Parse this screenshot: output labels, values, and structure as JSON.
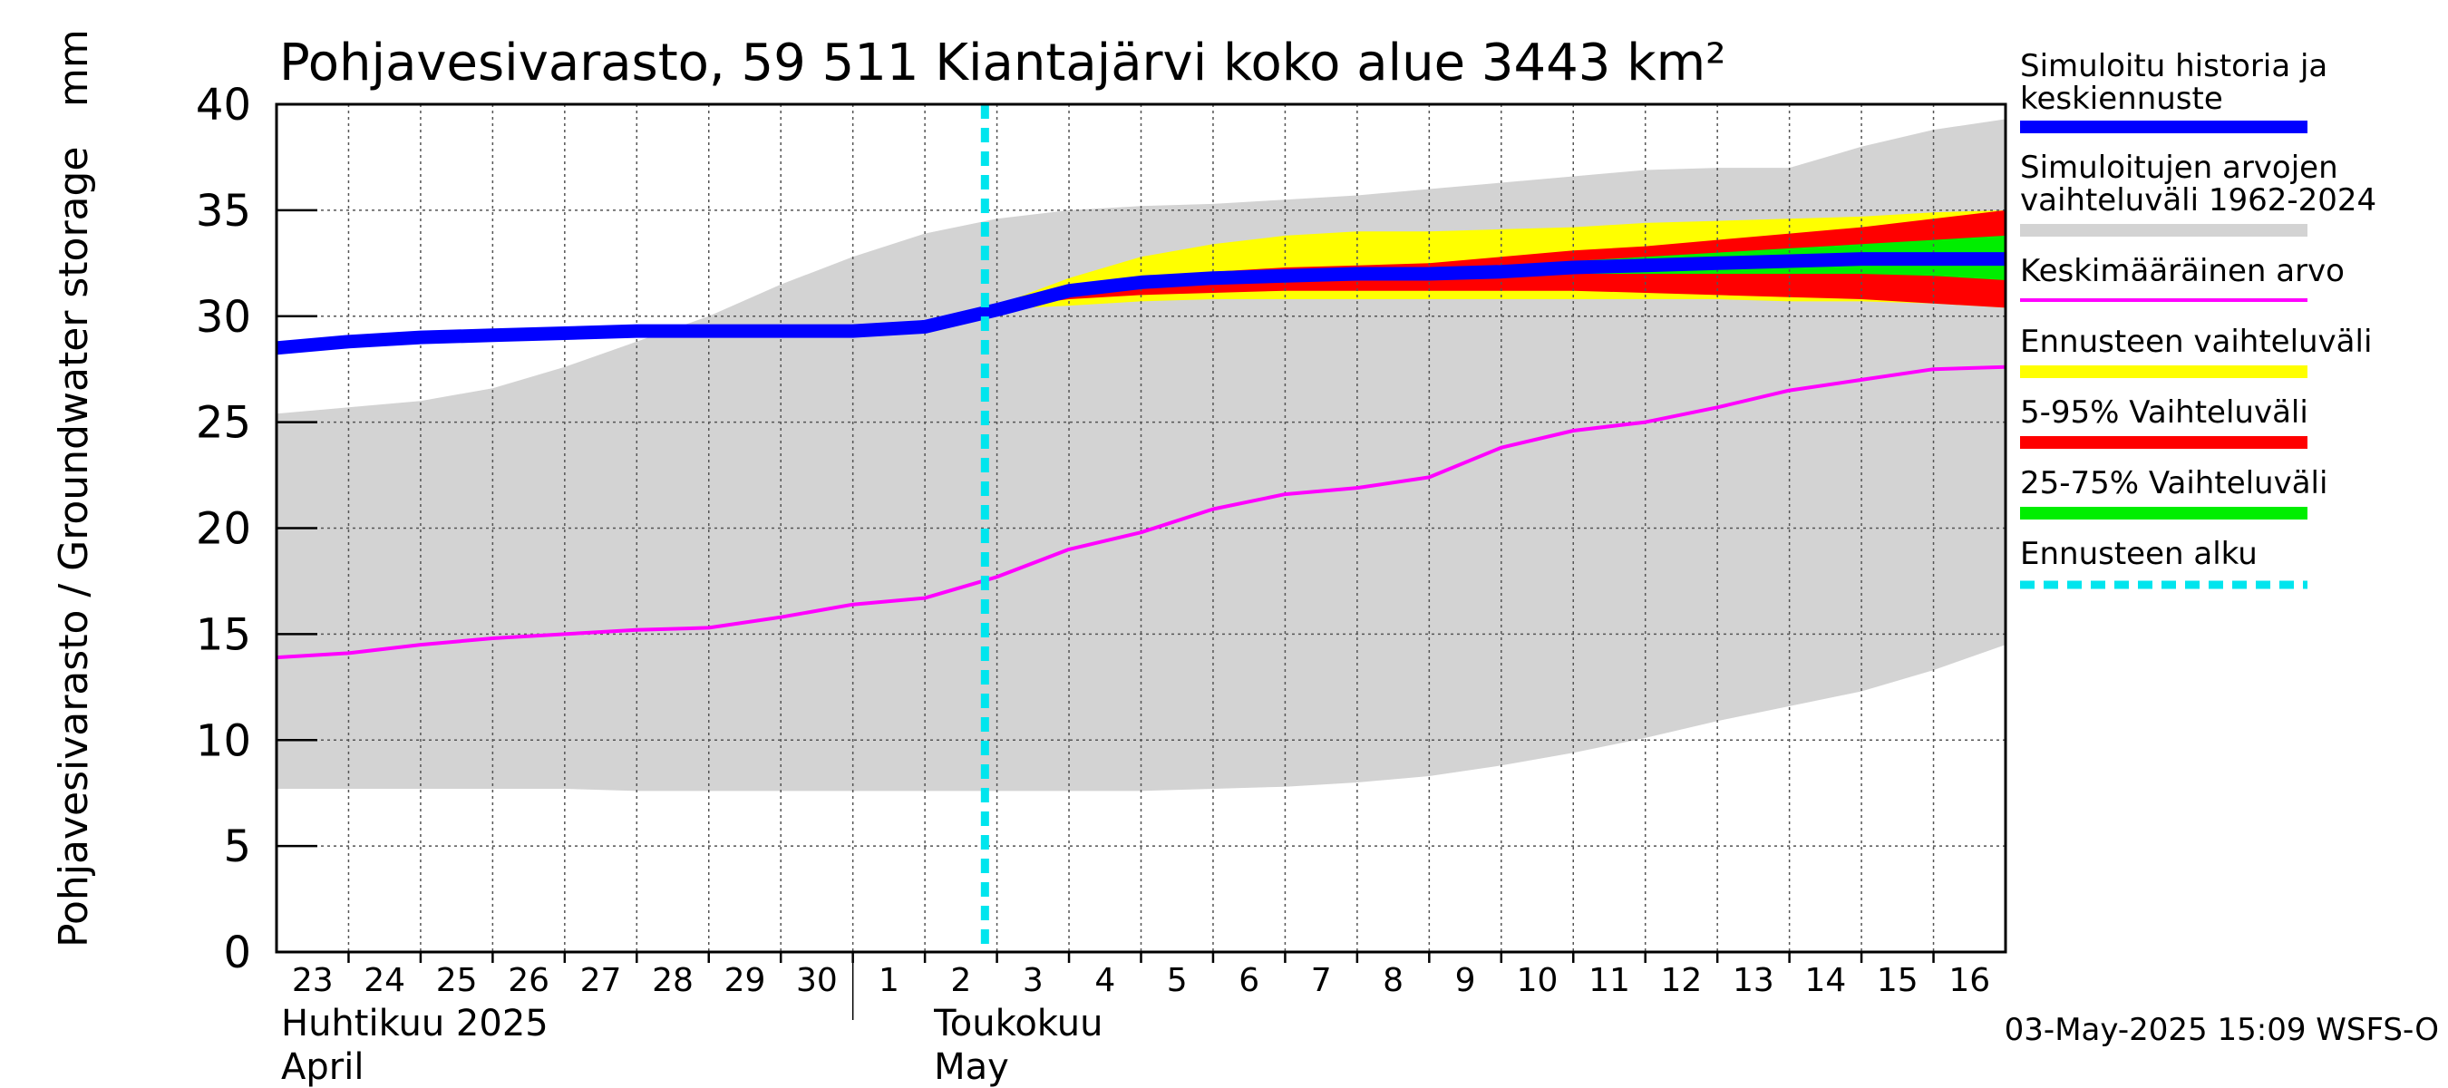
{
  "chart_data": {
    "type": "line",
    "title": "Pohjavesivarasto, 59 511 Kiantajärvi koko alue 3443 km²",
    "ylabel": "Pohjavesivarasto / Groundwater storage",
    "yunit": "mm",
    "ylim": [
      0,
      40
    ],
    "yticks": [
      "0",
      "5",
      "10",
      "15",
      "20",
      "25",
      "30",
      "35",
      "40"
    ],
    "x_day_labels": [
      "23",
      "24",
      "25",
      "26",
      "27",
      "28",
      "29",
      "30",
      "1",
      "2",
      "3",
      "4",
      "5",
      "6",
      "7",
      "8",
      "9",
      "10",
      "11",
      "12",
      "13",
      "14",
      "15",
      "16"
    ],
    "x_dates": [
      "2025-04-23",
      "2025-04-24",
      "2025-04-25",
      "2025-04-26",
      "2025-04-27",
      "2025-04-28",
      "2025-04-29",
      "2025-04-30",
      "2025-05-01",
      "2025-05-02",
      "2025-05-03",
      "2025-05-04",
      "2025-05-05",
      "2025-05-06",
      "2025-05-07",
      "2025-05-08",
      "2025-05-09",
      "2025-05-10",
      "2025-05-11",
      "2025-05-12",
      "2025-05-13",
      "2025-05-14",
      "2025-05-15",
      "2025-05-16",
      "2025-05-17"
    ],
    "x_range": [
      "2025-04-23",
      "2025-05-17"
    ],
    "month_labels": [
      {
        "line1": "Huhtikuu  2025",
        "line2": "April",
        "start": "2025-04-23"
      },
      {
        "line1": "Toukokuu",
        "line2": "May",
        "start": "2025-05-02"
      }
    ],
    "forecast_start": "2025-05-02T20:00",
    "grid": true,
    "series": [
      {
        "name": "Simuloitujen arvojen vaihteluväli 1962-2024",
        "kind": "band",
        "color": "#d3d3d3",
        "lower": [
          7.7,
          7.7,
          7.7,
          7.7,
          7.7,
          7.6,
          7.6,
          7.6,
          7.6,
          7.6,
          7.6,
          7.6,
          7.6,
          7.7,
          7.8,
          8.0,
          8.3,
          8.8,
          9.4,
          10.1,
          10.9,
          11.6,
          12.3,
          13.3,
          14.5
        ],
        "upper": [
          25.4,
          25.7,
          26.0,
          26.6,
          27.6,
          28.8,
          30.0,
          31.5,
          32.8,
          33.9,
          34.6,
          35.0,
          35.2,
          35.3,
          35.5,
          35.7,
          36.0,
          36.3,
          36.6,
          36.9,
          37.0,
          37.0,
          38.0,
          38.8,
          39.3
        ]
      },
      {
        "name": "Keskimääräinen arvo",
        "kind": "line",
        "color": "#ff00ff",
        "values": [
          13.9,
          14.1,
          14.5,
          14.8,
          15.0,
          15.2,
          15.3,
          15.8,
          16.4,
          16.7,
          17.7,
          19.0,
          19.8,
          20.9,
          21.6,
          21.9,
          22.4,
          23.8,
          24.6,
          25.0,
          25.7,
          26.5,
          27.0,
          27.5,
          27.6
        ]
      },
      {
        "name": "Ennusteen vaihteluväli",
        "kind": "band",
        "color": "#ffff00",
        "x": [
          "2025-05-02T20:00",
          "2025-05-04",
          "2025-05-05",
          "2025-05-06",
          "2025-05-07",
          "2025-05-08",
          "2025-05-09",
          "2025-05-10",
          "2025-05-11",
          "2025-05-12",
          "2025-05-13",
          "2025-05-14",
          "2025-05-15",
          "2025-05-16",
          "2025-05-17"
        ],
        "lower": [
          30.3,
          30.5,
          30.7,
          30.8,
          30.8,
          30.8,
          30.8,
          30.8,
          30.8,
          30.8,
          30.8,
          30.7,
          30.7,
          30.6,
          30.4
        ],
        "upper": [
          30.3,
          31.8,
          32.8,
          33.4,
          33.8,
          34.0,
          34.0,
          34.1,
          34.2,
          34.4,
          34.5,
          34.6,
          34.7,
          34.9,
          35.0
        ]
      },
      {
        "name": "5-95% Vaihteluväli",
        "kind": "band",
        "color": "#ff0000",
        "x": [
          "2025-05-02T20:00",
          "2025-05-04",
          "2025-05-05",
          "2025-05-06",
          "2025-05-07",
          "2025-05-08",
          "2025-05-09",
          "2025-05-10",
          "2025-05-11",
          "2025-05-12",
          "2025-05-13",
          "2025-05-14",
          "2025-05-15",
          "2025-05-16",
          "2025-05-17"
        ],
        "lower": [
          30.3,
          30.8,
          31.0,
          31.1,
          31.2,
          31.2,
          31.2,
          31.2,
          31.2,
          31.1,
          31.0,
          30.9,
          30.8,
          30.6,
          30.4
        ],
        "upper": [
          30.3,
          31.4,
          31.8,
          32.1,
          32.3,
          32.4,
          32.5,
          32.8,
          33.1,
          33.3,
          33.6,
          33.9,
          34.2,
          34.6,
          35.0
        ]
      },
      {
        "name": "25-75% Vaihteluväli",
        "kind": "band",
        "color": "#00ee00",
        "x": [
          "2025-05-02T20:00",
          "2025-05-04",
          "2025-05-05",
          "2025-05-06",
          "2025-05-07",
          "2025-05-08",
          "2025-05-09",
          "2025-05-10",
          "2025-05-11",
          "2025-05-12",
          "2025-05-13",
          "2025-05-14",
          "2025-05-15",
          "2025-05-16",
          "2025-05-17"
        ],
        "lower": [
          30.3,
          31.1,
          31.4,
          31.6,
          31.7,
          31.8,
          31.8,
          31.9,
          32.0,
          32.0,
          32.0,
          32.0,
          32.0,
          31.9,
          31.7
        ],
        "upper": [
          30.3,
          31.2,
          31.6,
          31.8,
          31.9,
          32.0,
          32.2,
          32.4,
          32.6,
          32.8,
          33.0,
          33.2,
          33.4,
          33.6,
          33.8
        ]
      },
      {
        "name": "Simuloitu historia ja keskiennuste",
        "kind": "line",
        "color": "#0000ff",
        "values": [
          28.5,
          28.8,
          29.0,
          29.1,
          29.2,
          29.3,
          29.3,
          29.3,
          29.3,
          29.5,
          30.3,
          31.2,
          31.6,
          31.8,
          31.9,
          32.0,
          32.0,
          32.1,
          32.3,
          32.4,
          32.5,
          32.6,
          32.7,
          32.7,
          32.7
        ]
      }
    ],
    "legend": {
      "placement": "right",
      "items": [
        {
          "label_lines": [
            "Simuloitu historia ja",
            "keskiennuste"
          ],
          "color": "#0000ff",
          "style": "solid"
        },
        {
          "label_lines": [
            "Simuloitujen arvojen",
            "vaihteluväli 1962-2024"
          ],
          "color": "#d3d3d3",
          "style": "solid"
        },
        {
          "label_lines": [
            "Keskimääräinen arvo"
          ],
          "color": "#ff00ff",
          "style": "thin"
        },
        {
          "label_lines": [
            "Ennusteen vaihteluväli"
          ],
          "color": "#ffff00",
          "style": "solid"
        },
        {
          "label_lines": [
            "5-95% Vaihteluväli"
          ],
          "color": "#ff0000",
          "style": "solid"
        },
        {
          "label_lines": [
            "25-75% Vaihteluväli"
          ],
          "color": "#00ee00",
          "style": "solid"
        },
        {
          "label_lines": [
            "Ennusteen alku"
          ],
          "color": "#00e5ee",
          "style": "dashed"
        }
      ]
    },
    "footer": "03-May-2025 15:09 WSFS-O"
  }
}
